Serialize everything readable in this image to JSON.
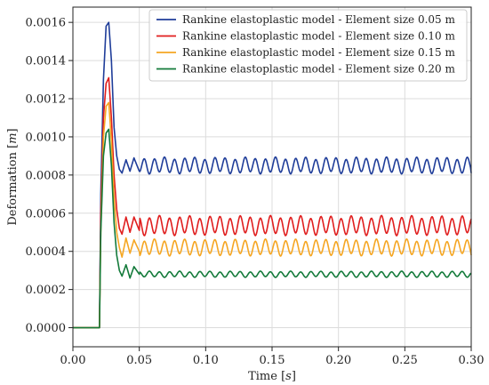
{
  "chart_data": {
    "type": "line",
    "xlabel_text": "Time ",
    "xlabel_unit": "s",
    "ylabel_text": "Deformation ",
    "ylabel_unit": "m",
    "xlim": [
      0,
      0.3
    ],
    "ylim": [
      -0.0001,
      0.00168
    ],
    "xticks": [
      0.0,
      0.05,
      0.1,
      0.15,
      0.2,
      0.25,
      0.3
    ],
    "xtick_labels": [
      "0.00",
      "0.05",
      "0.10",
      "0.15",
      "0.20",
      "0.25",
      "0.30"
    ],
    "yticks": [
      0.0,
      0.0002,
      0.0004,
      0.0006,
      0.0008,
      0.001,
      0.0012,
      0.0014,
      0.0016
    ],
    "ytick_labels": [
      "0.0000",
      "0.0002",
      "0.0004",
      "0.0006",
      "0.0008",
      "0.0010",
      "0.0012",
      "0.0014",
      "0.0016"
    ],
    "grid": true,
    "legend_position": "top-right",
    "series": [
      {
        "name": "Rankine elastoplastic model - Element size 0.05 m",
        "color": "#1f3d99",
        "x": [
          0,
          0.02,
          0.021,
          0.023,
          0.025,
          0.027,
          0.029,
          0.031,
          0.033,
          0.035,
          0.037,
          0.04,
          0.043,
          0.046,
          0.05
        ],
        "y": [
          0,
          0,
          0.0007,
          0.0013,
          0.00158,
          0.0016,
          0.0014,
          0.00105,
          0.0009,
          0.00083,
          0.00081,
          0.00088,
          0.00082,
          0.00089,
          0.00082
        ],
        "osc_center": 0.00085,
        "osc_amplitude": 3.8e-05,
        "osc_period": 0.0076,
        "osc_end": 0.00081
      },
      {
        "name": "Rankine elastoplastic model - Element size 0.10 m",
        "color": "#e01e1e",
        "x": [
          0,
          0.02,
          0.021,
          0.023,
          0.025,
          0.027,
          0.029,
          0.031,
          0.033,
          0.035,
          0.037,
          0.04,
          0.043,
          0.046,
          0.05
        ],
        "y": [
          0,
          0,
          0.0006,
          0.0011,
          0.00128,
          0.00131,
          0.0011,
          0.0008,
          0.00062,
          0.00052,
          0.00049,
          0.00058,
          0.0005,
          0.00058,
          0.00051
        ],
        "osc_center": 0.000535,
        "osc_amplitude": 4.5e-05,
        "osc_period": 0.0076,
        "osc_end": 0.00057
      },
      {
        "name": "Rankine elastoplastic model - Element size 0.15 m",
        "color": "#f5a623",
        "x": [
          0,
          0.02,
          0.021,
          0.023,
          0.025,
          0.027,
          0.029,
          0.031,
          0.033,
          0.035,
          0.037,
          0.04,
          0.043,
          0.046,
          0.05
        ],
        "y": [
          0,
          0,
          0.0005,
          0.001,
          0.00116,
          0.00118,
          0.00098,
          0.00068,
          0.0005,
          0.00042,
          0.00037,
          0.00047,
          0.00039,
          0.00046,
          0.0004
        ],
        "osc_center": 0.00042,
        "osc_amplitude": 3.8e-05,
        "osc_period": 0.0076,
        "osc_end": 0.00038
      },
      {
        "name": "Rankine elastoplastic model - Element size 0.20 m",
        "color": "#137a3a",
        "x": [
          0,
          0.02,
          0.021,
          0.023,
          0.025,
          0.027,
          0.029,
          0.031,
          0.033,
          0.035,
          0.037,
          0.04,
          0.043,
          0.046,
          0.05
        ],
        "y": [
          0,
          0,
          0.0005,
          0.0009,
          0.00102,
          0.00104,
          0.00085,
          0.00055,
          0.00038,
          0.0003,
          0.00027,
          0.00033,
          0.00026,
          0.00032,
          0.00028
        ],
        "osc_center": 0.00028,
        "osc_amplitude": 1.4e-05,
        "osc_period": 0.0076,
        "osc_end": 0.00028
      }
    ]
  }
}
